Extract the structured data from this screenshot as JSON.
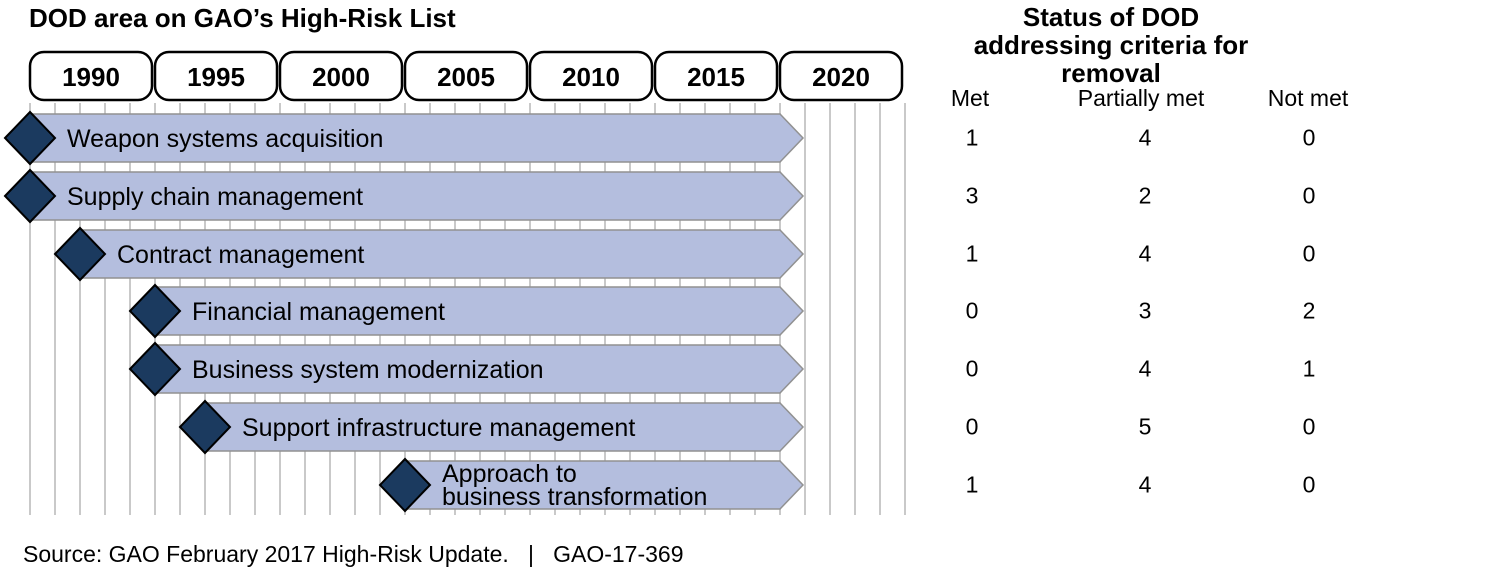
{
  "left_title": "DOD area on GAO’s High-Risk List",
  "right_title": {
    "line1": "Status of DOD",
    "line2": "addressing criteria for removal"
  },
  "status_columns": [
    "Met",
    "Partially met",
    "Not met"
  ],
  "source": "Source: GAO February 2017 High-Risk Update.   |   GAO-17-369",
  "chart_data": {
    "type": "timeline",
    "title": "DOD area on GAO’s High-Risk List",
    "subtitle_right": "Status of DOD addressing criteria for removal",
    "axis": {
      "unit": "year",
      "min_year": 1990,
      "max_year": 2025,
      "tick_box_years": [
        "1990",
        "1995",
        "2000",
        "2005",
        "2010",
        "2015",
        "2020"
      ],
      "minor_tick_interval_years": 1,
      "grid": true
    },
    "bars_end": "open-ended arrow at right (ongoing through 2020)",
    "rows": [
      {
        "label": "Weapon systems acquisition",
        "label_lines": [
          "Weapon systems acquisition"
        ],
        "start_year": 1990,
        "met": 1,
        "partially_met": 4,
        "not_met": 0
      },
      {
        "label": "Supply chain management",
        "label_lines": [
          "Supply chain management"
        ],
        "start_year": 1990,
        "met": 3,
        "partially_met": 2,
        "not_met": 0
      },
      {
        "label": "Contract management",
        "label_lines": [
          "Contract management"
        ],
        "start_year": 1992,
        "met": 1,
        "partially_met": 4,
        "not_met": 0
      },
      {
        "label": "Financial management",
        "label_lines": [
          "Financial management"
        ],
        "start_year": 1995,
        "met": 0,
        "partially_met": 3,
        "not_met": 2
      },
      {
        "label": "Business system modernization",
        "label_lines": [
          "Business system modernization"
        ],
        "start_year": 1995,
        "met": 0,
        "partially_met": 4,
        "not_met": 1
      },
      {
        "label": "Support infrastructure management",
        "label_lines": [
          "Support infrastructure management"
        ],
        "start_year": 1997,
        "met": 0,
        "partially_met": 5,
        "not_met": 0
      },
      {
        "label": "Approach to business transformation",
        "label_lines": [
          "Approach to",
          "business transformation"
        ],
        "start_year": 2005,
        "met": 1,
        "partially_met": 4,
        "not_met": 0
      }
    ],
    "colors": {
      "bar_fill": "#b4bede",
      "bar_border": "#919191",
      "diamond_fill": "#1b3a5f",
      "diamond_border": "#000000",
      "gridline": "#c9c9c9",
      "year_box_fill": "#ffffff",
      "year_box_border": "#000000",
      "text": "#000000"
    },
    "legend_position": "none"
  }
}
